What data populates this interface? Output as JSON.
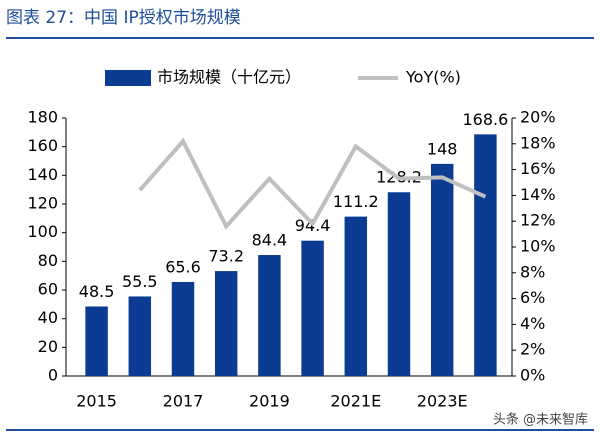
{
  "chart_data": {
    "type": "bar",
    "title": "图表 27：中国 IP授权市场规模",
    "watermark": "头条 @未来智库",
    "categories": [
      "2015",
      null,
      "2017",
      null,
      "2019",
      null,
      "2021E",
      null,
      "2023E",
      null
    ],
    "series": [
      {
        "name": "市场规模（十亿元）",
        "type": "bar",
        "color": "#0b3b93",
        "values": [
          48.5,
          55.5,
          65.6,
          73.2,
          84.4,
          94.4,
          111.2,
          128.2,
          148,
          168.6
        ]
      },
      {
        "name": "YoY(%)",
        "type": "line",
        "axis": "y2",
        "color": "#bfbfbf",
        "values": [
          null,
          14.4,
          18.2,
          11.6,
          15.3,
          11.8,
          17.8,
          15.3,
          15.4,
          13.9
        ]
      }
    ],
    "ylim": [
      0,
      180
    ],
    "yticks": [
      0,
      20,
      40,
      60,
      80,
      100,
      120,
      140,
      160,
      180
    ],
    "y2lim": [
      0,
      20
    ],
    "y2ticks": [
      {
        "value": 0,
        "label": "0%"
      },
      {
        "value": 2,
        "label": "2%"
      },
      {
        "value": 4,
        "label": "4%"
      },
      {
        "value": 6,
        "label": "6%"
      },
      {
        "value": 8,
        "label": "8%"
      },
      {
        "value": 10,
        "label": "10%"
      },
      {
        "value": 12,
        "label": "12%"
      },
      {
        "value": 14,
        "label": "14%"
      },
      {
        "value": 16,
        "label": "16%"
      },
      {
        "value": 18,
        "label": "18%"
      },
      {
        "value": 20,
        "label": "20%"
      }
    ],
    "legend": "top"
  }
}
